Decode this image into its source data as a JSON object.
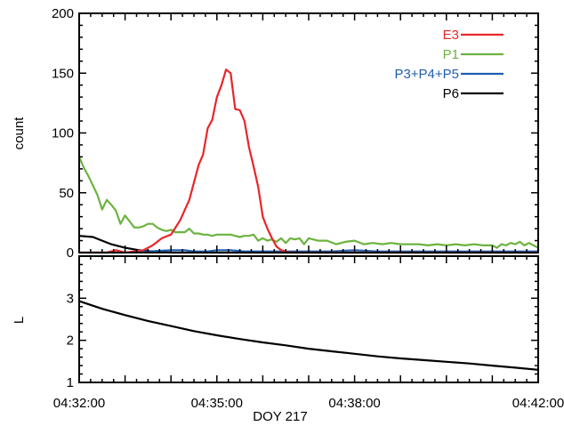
{
  "chart_data": [
    {
      "type": "line",
      "ylabel": "count",
      "ylim": [
        0,
        200
      ],
      "yticks": [
        0,
        50,
        100,
        150,
        200
      ],
      "xlim_minutes": [
        0,
        10
      ],
      "legend_placement": "top-right",
      "series": [
        {
          "name": "E3",
          "color": "#e8262a",
          "x": [
            0,
            0.2,
            0.4,
            0.6,
            0.8,
            1.0,
            1.2,
            1.4,
            1.6,
            1.8,
            2.0,
            2.2,
            2.4,
            2.6,
            2.7,
            2.8,
            2.9,
            3.0,
            3.1,
            3.2,
            3.3,
            3.4,
            3.5,
            3.6,
            3.7,
            3.8,
            3.9,
            4.0,
            4.1,
            4.2,
            4.3,
            4.4,
            4.5,
            4.6,
            4.8,
            5.0,
            5.5,
            6.0,
            6.5,
            7.0,
            7.5,
            8.0,
            8.5,
            9.0,
            9.5,
            10.0
          ],
          "y": [
            0,
            0,
            0,
            0,
            2,
            0,
            1,
            2,
            6,
            12,
            15,
            27,
            44,
            73,
            82,
            104,
            111,
            130,
            140,
            153,
            150,
            120,
            119,
            110,
            88,
            72,
            55,
            30,
            20,
            12,
            5,
            2,
            1,
            0,
            0,
            0,
            0,
            0,
            0,
            0,
            0,
            0,
            0,
            0,
            0,
            0
          ]
        },
        {
          "name": "P1",
          "color": "#6cb33f",
          "x": [
            0,
            0.1,
            0.2,
            0.3,
            0.4,
            0.5,
            0.6,
            0.7,
            0.8,
            0.9,
            1.0,
            1.1,
            1.2,
            1.3,
            1.4,
            1.5,
            1.6,
            1.7,
            1.8,
            1.9,
            2.0,
            2.1,
            2.2,
            2.3,
            2.4,
            2.5,
            2.6,
            2.7,
            2.8,
            2.9,
            3.0,
            3.1,
            3.2,
            3.3,
            3.4,
            3.5,
            3.6,
            3.7,
            3.8,
            3.9,
            4.0,
            4.1,
            4.2,
            4.3,
            4.4,
            4.5,
            4.6,
            4.7,
            4.8,
            4.9,
            5.0,
            5.2,
            5.4,
            5.6,
            5.8,
            6.0,
            6.2,
            6.4,
            6.6,
            6.8,
            7.0,
            7.2,
            7.4,
            7.6,
            7.8,
            8.0,
            8.2,
            8.4,
            8.6,
            8.8,
            9.0,
            9.1,
            9.2,
            9.3,
            9.4,
            9.5,
            9.6,
            9.7,
            9.8,
            9.9,
            10.0
          ],
          "y": [
            80,
            71,
            64,
            56,
            48,
            36,
            44,
            40,
            35,
            24,
            31,
            26,
            21,
            21,
            22,
            24,
            24,
            21,
            19,
            18,
            19,
            17,
            17,
            17,
            20,
            16,
            16,
            15,
            15,
            14,
            15,
            15,
            15,
            15,
            14,
            13,
            14,
            14,
            15,
            10,
            12,
            10,
            11,
            9,
            12,
            8,
            12,
            11,
            12,
            7,
            12,
            10,
            10,
            7,
            9,
            10,
            7,
            8,
            7,
            8,
            7,
            7,
            7,
            6,
            7,
            6,
            7,
            6,
            7,
            6,
            6,
            4,
            7,
            6,
            8,
            7,
            9,
            6,
            8,
            6,
            4
          ]
        },
        {
          "name": "P3+P4+P5",
          "color": "#1f5fb0",
          "x": [
            0,
            0.5,
            1.0,
            1.5,
            2.0,
            2.3,
            2.5,
            2.8,
            3.0,
            3.3,
            3.6,
            4.0,
            4.5,
            5.0,
            5.5,
            6.0,
            6.5,
            7.0,
            7.5,
            8.0,
            8.5,
            9.0,
            9.5,
            10.0
          ],
          "y": [
            0,
            0,
            0,
            1,
            2,
            2,
            1,
            1,
            2,
            2,
            1,
            1,
            1,
            1,
            1,
            2,
            1,
            1,
            1,
            1,
            1,
            1,
            1,
            1
          ]
        },
        {
          "name": "P6",
          "color": "#000000",
          "x": [
            0,
            0.3,
            0.5,
            0.7,
            1.0,
            1.3,
            1.6,
            2.0,
            2.5,
            3.0,
            3.5,
            4.0,
            5.0,
            6.0,
            7.0,
            8.0,
            9.0,
            10.0
          ],
          "y": [
            14,
            13,
            10,
            7,
            4,
            2,
            1,
            0,
            0,
            0,
            0,
            0,
            0,
            0,
            0,
            0,
            0,
            0
          ]
        }
      ]
    },
    {
      "type": "line",
      "ylabel": "L",
      "xlabel": "DOY 217",
      "ylim": [
        1,
        4
      ],
      "yticks": [
        1,
        2,
        3
      ],
      "xlim_minutes": [
        0,
        10
      ],
      "xticks": [
        "04:32:00",
        "04:35:00",
        "04:38:00",
        "04:42:00"
      ],
      "xtick_minutes": [
        0,
        3,
        6,
        10
      ],
      "series": [
        {
          "color": "#000000",
          "x": [
            0,
            0.5,
            1,
            1.5,
            2,
            2.5,
            3,
            3.5,
            4,
            4.5,
            5,
            5.5,
            6,
            6.5,
            7,
            7.5,
            8,
            8.5,
            9,
            9.5,
            10
          ],
          "y": [
            2.93,
            2.75,
            2.6,
            2.46,
            2.34,
            2.22,
            2.12,
            2.03,
            1.95,
            1.88,
            1.8,
            1.74,
            1.68,
            1.62,
            1.57,
            1.53,
            1.49,
            1.45,
            1.4,
            1.35,
            1.3
          ]
        }
      ]
    }
  ]
}
